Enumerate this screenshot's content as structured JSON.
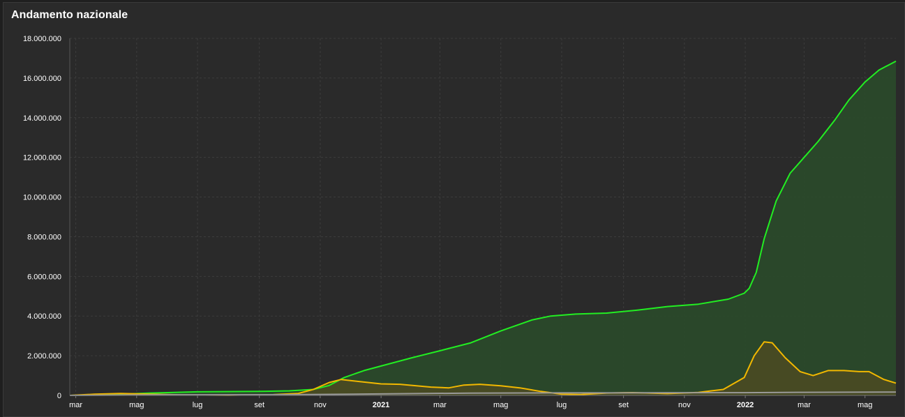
{
  "chart_data": {
    "type": "area",
    "title": "Andamento nazionale",
    "ylim": [
      0,
      18000000
    ],
    "yticks": [
      {
        "value": 0,
        "label": "0"
      },
      {
        "value": 2000000,
        "label": "2.000.000"
      },
      {
        "value": 4000000,
        "label": "4.000.000"
      },
      {
        "value": 6000000,
        "label": "6.000.000"
      },
      {
        "value": 8000000,
        "label": "8.000.000"
      },
      {
        "value": 10000000,
        "label": "10.000.000"
      },
      {
        "value": 12000000,
        "label": "12.000.000"
      },
      {
        "value": 14000000,
        "label": "14.000.000"
      },
      {
        "value": 16000000,
        "label": "16.000.000"
      },
      {
        "value": 18000000,
        "label": "18.000.000"
      }
    ],
    "xlim": [
      "2020-02-24",
      "2022-06-01"
    ],
    "xticks": [
      {
        "date": "2020-03-01",
        "label": "mar",
        "bold": false
      },
      {
        "date": "2020-05-01",
        "label": "mag",
        "bold": false
      },
      {
        "date": "2020-07-01",
        "label": "lug",
        "bold": false
      },
      {
        "date": "2020-09-01",
        "label": "set",
        "bold": false
      },
      {
        "date": "2020-11-01",
        "label": "nov",
        "bold": false
      },
      {
        "date": "2021-01-01",
        "label": "2021",
        "bold": true
      },
      {
        "date": "2021-03-01",
        "label": "mar",
        "bold": false
      },
      {
        "date": "2021-05-01",
        "label": "mag",
        "bold": false
      },
      {
        "date": "2021-07-01",
        "label": "lug",
        "bold": false
      },
      {
        "date": "2021-09-01",
        "label": "set",
        "bold": false
      },
      {
        "date": "2021-11-01",
        "label": "nov",
        "bold": false
      },
      {
        "date": "2022-01-01",
        "label": "2022",
        "bold": true
      },
      {
        "date": "2022-03-01",
        "label": "mar",
        "bold": false
      },
      {
        "date": "2022-05-01",
        "label": "mag",
        "bold": false
      }
    ],
    "grid": true,
    "series": [
      {
        "color": "#22ee22",
        "fill": "#2a4a2a",
        "area": true,
        "points": [
          [
            "2020-02-24",
            0
          ],
          [
            "2020-04-01",
            30000
          ],
          [
            "2020-05-15",
            120000
          ],
          [
            "2020-07-01",
            180000
          ],
          [
            "2020-09-01",
            200000
          ],
          [
            "2020-10-01",
            230000
          ],
          [
            "2020-10-25",
            300000
          ],
          [
            "2020-11-10",
            500000
          ],
          [
            "2020-11-25",
            900000
          ],
          [
            "2020-12-15",
            1250000
          ],
          [
            "2021-01-01",
            1480000
          ],
          [
            "2021-02-01",
            1900000
          ],
          [
            "2021-03-01",
            2250000
          ],
          [
            "2021-04-01",
            2650000
          ],
          [
            "2021-05-01",
            3250000
          ],
          [
            "2021-06-01",
            3800000
          ],
          [
            "2021-06-20",
            4000000
          ],
          [
            "2021-07-15",
            4100000
          ],
          [
            "2021-08-15",
            4150000
          ],
          [
            "2021-09-15",
            4300000
          ],
          [
            "2021-10-15",
            4480000
          ],
          [
            "2021-11-15",
            4600000
          ],
          [
            "2021-12-15",
            4850000
          ],
          [
            "2021-12-31",
            5150000
          ],
          [
            "2022-01-05",
            5400000
          ],
          [
            "2022-01-12",
            6200000
          ],
          [
            "2022-01-20",
            7900000
          ],
          [
            "2022-02-01",
            9800000
          ],
          [
            "2022-02-15",
            11200000
          ],
          [
            "2022-03-01",
            12000000
          ],
          [
            "2022-03-15",
            12800000
          ],
          [
            "2022-04-01",
            13900000
          ],
          [
            "2022-04-15",
            14900000
          ],
          [
            "2022-05-01",
            15800000
          ],
          [
            "2022-05-15",
            16400000
          ],
          [
            "2022-06-01",
            16850000
          ]
        ]
      },
      {
        "color": "#f2b800",
        "fill": "#4a4a22",
        "area": true,
        "points": [
          [
            "2020-02-24",
            0
          ],
          [
            "2020-03-20",
            60000
          ],
          [
            "2020-04-15",
            100000
          ],
          [
            "2020-05-15",
            60000
          ],
          [
            "2020-06-15",
            25000
          ],
          [
            "2020-08-01",
            12000
          ],
          [
            "2020-09-15",
            40000
          ],
          [
            "2020-10-10",
            100000
          ],
          [
            "2020-10-25",
            300000
          ],
          [
            "2020-11-10",
            650000
          ],
          [
            "2020-11-22",
            800000
          ],
          [
            "2020-12-10",
            700000
          ],
          [
            "2021-01-01",
            580000
          ],
          [
            "2021-01-20",
            560000
          ],
          [
            "2021-02-20",
            420000
          ],
          [
            "2021-03-10",
            380000
          ],
          [
            "2021-03-25",
            520000
          ],
          [
            "2021-04-10",
            560000
          ],
          [
            "2021-05-01",
            480000
          ],
          [
            "2021-05-20",
            380000
          ],
          [
            "2021-06-10",
            200000
          ],
          [
            "2021-07-01",
            60000
          ],
          [
            "2021-07-20",
            45000
          ],
          [
            "2021-08-15",
            120000
          ],
          [
            "2021-09-10",
            140000
          ],
          [
            "2021-10-15",
            90000
          ],
          [
            "2021-11-15",
            150000
          ],
          [
            "2021-12-10",
            300000
          ],
          [
            "2021-12-31",
            900000
          ],
          [
            "2022-01-10",
            2000000
          ],
          [
            "2022-01-20",
            2700000
          ],
          [
            "2022-01-28",
            2650000
          ],
          [
            "2022-02-10",
            1900000
          ],
          [
            "2022-02-25",
            1200000
          ],
          [
            "2022-03-10",
            1000000
          ],
          [
            "2022-03-25",
            1250000
          ],
          [
            "2022-04-10",
            1250000
          ],
          [
            "2022-04-25",
            1200000
          ],
          [
            "2022-05-05",
            1200000
          ],
          [
            "2022-05-20",
            800000
          ],
          [
            "2022-06-01",
            620000
          ]
        ]
      },
      {
        "color": "#9a9a9a",
        "fill": "none",
        "area": false,
        "points": [
          [
            "2020-02-24",
            0
          ],
          [
            "2020-06-01",
            33000
          ],
          [
            "2020-10-01",
            36000
          ],
          [
            "2021-01-01",
            75000
          ],
          [
            "2021-04-01",
            115000
          ],
          [
            "2021-07-01",
            128000
          ],
          [
            "2021-10-01",
            131000
          ],
          [
            "2022-01-01",
            138000
          ],
          [
            "2022-03-01",
            155000
          ],
          [
            "2022-06-01",
            167000
          ]
        ]
      }
    ]
  }
}
